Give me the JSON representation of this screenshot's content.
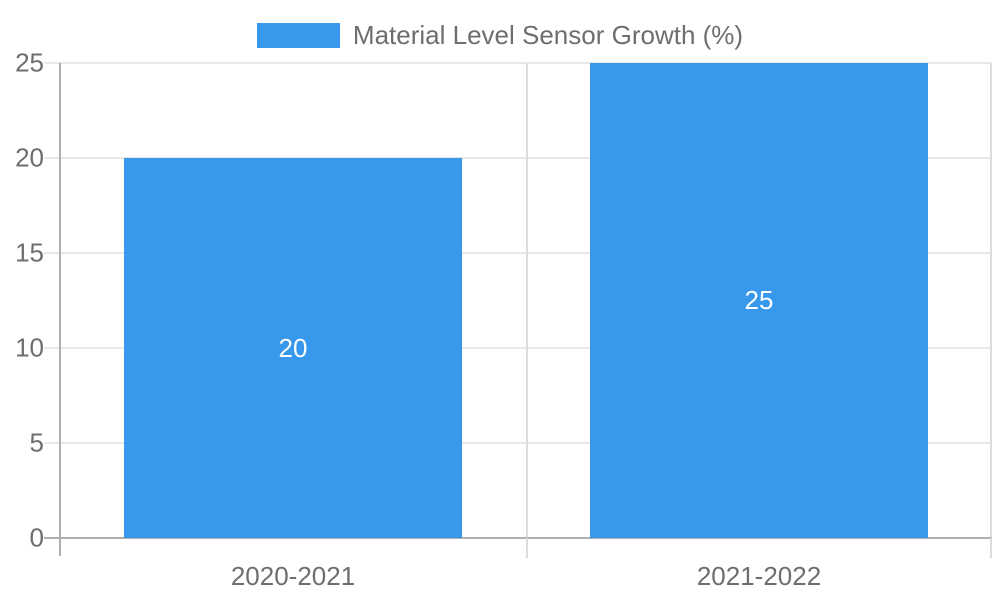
{
  "chart_data": {
    "type": "bar",
    "title": "Material Level Sensor Growth (%)",
    "categories": [
      "2020-2021",
      "2021-2022"
    ],
    "series": [
      {
        "name": "Material Level Sensor Growth (%)",
        "values": [
          20,
          25
        ]
      }
    ],
    "xlabel": "",
    "ylabel": "",
    "yticks": [
      0,
      5,
      10,
      15,
      20,
      25
    ],
    "ylim": [
      0,
      25
    ],
    "grid": true,
    "legend_position": "top-center",
    "value_labels_inside_bars": true
  },
  "colors": {
    "bar": "#3898EC",
    "grid": "#E8E8E8",
    "grid_secondary": "#DCDCDC",
    "axis": "#AFAFAF",
    "tick_text": "#6E6E6E",
    "value_text": "#FFFFFF",
    "background": "#FFFFFF"
  }
}
